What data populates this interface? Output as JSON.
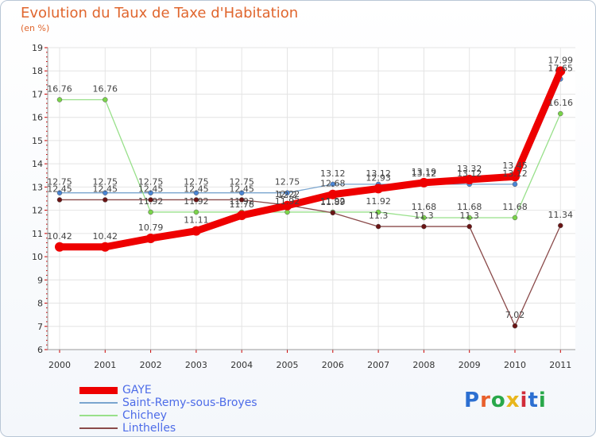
{
  "header": {
    "title": "Evolution du Taux de Taxe d'Habitation",
    "unit": "(en %)"
  },
  "logo": {
    "text": "Proxiti",
    "letter_colors": [
      "#2c6fd1",
      "#e8602c",
      "#29a84a",
      "#e8b61c",
      "#d12c3a",
      "#2c6fd1",
      "#29a84a"
    ]
  },
  "chart_data": {
    "type": "line",
    "title": "Evolution du Taux de Taxe d'Habitation",
    "ylabel": "(en %)",
    "xlabel": "",
    "x": [
      "2000",
      "2001",
      "2002",
      "2003",
      "2004",
      "2005",
      "2006",
      "2007",
      "2008",
      "2009",
      "2010",
      "2011"
    ],
    "ylim": [
      6,
      19
    ],
    "yticks": [
      "6",
      "7",
      "8",
      "9",
      "10",
      "11",
      "12",
      "13",
      "14",
      "15",
      "16",
      "17",
      "18",
      "19"
    ],
    "grid": true,
    "legend_position": "bottom-left",
    "series": [
      {
        "name": "GAYE",
        "color": "#ee0000",
        "style": "thick",
        "values": [
          10.42,
          10.42,
          10.79,
          11.11,
          11.78,
          12.2,
          12.68,
          12.93,
          13.19,
          13.32,
          13.45,
          17.99
        ],
        "labels": [
          "10.42",
          "10.42",
          "10.79",
          "11.11",
          "11.78",
          "12.2",
          "12.68",
          "12.93",
          "13.19",
          "13.32",
          "13.45",
          "17.99"
        ]
      },
      {
        "name": "Saint-Remy-sous-Broyes",
        "color": "#7aa5cf",
        "marker": "#4a86d6",
        "style": "thin",
        "values": [
          12.75,
          12.75,
          12.75,
          12.75,
          12.75,
          12.75,
          13.12,
          13.12,
          13.12,
          13.12,
          13.12,
          17.65
        ],
        "labels": [
          "12.75",
          "12.75",
          "12.75",
          "12.75",
          "12.75",
          "12.75",
          "13.12",
          "13.12",
          "13.12",
          "13.12",
          "13.12",
          "17.65"
        ]
      },
      {
        "name": "Chichey",
        "color": "#98e08a",
        "marker": "#7ad44a",
        "style": "thin",
        "values": [
          16.76,
          16.76,
          11.92,
          11.92,
          11.92,
          11.92,
          11.92,
          11.92,
          11.68,
          11.68,
          11.68,
          16.16
        ],
        "labels": [
          "16.76",
          "16.76",
          "11.92",
          "11.92",
          "11.92",
          "11.92",
          "11.92",
          "11.92",
          "11.68",
          "11.68",
          "11.68",
          "16.16"
        ]
      },
      {
        "name": "Linthelles",
        "color": "#8a4a4a",
        "marker": "#6a1414",
        "style": "thin",
        "values": [
          12.45,
          12.45,
          12.45,
          12.45,
          12.45,
          12.22,
          11.89,
          11.3,
          11.3,
          11.3,
          7.02,
          11.34
        ],
        "labels": [
          "12.45",
          "12.45",
          "12.45",
          "12.45",
          "12.45",
          "12.22",
          "11.89",
          "11.3",
          "11.3",
          "11.3",
          "7.02",
          "11.34"
        ]
      }
    ]
  }
}
